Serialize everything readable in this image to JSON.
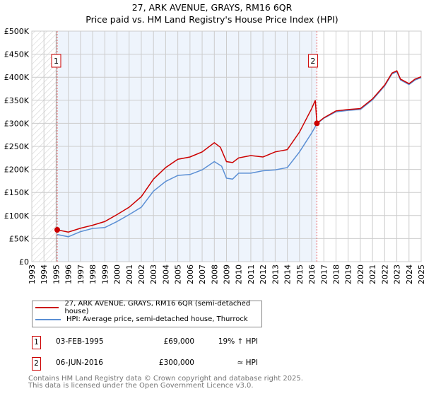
{
  "title": "27, ARK AVENUE, GRAYS, RM16 6QR",
  "subtitle": "Price paid vs. HM Land Registry's House Price Index (HPI)",
  "chart_data": {
    "type": "line",
    "title": "27, ARK AVENUE, GRAYS, RM16 6QR",
    "subtitle": "Price paid vs. HM Land Registry's House Price Index (HPI)",
    "xlim": [
      1993,
      2025
    ],
    "ylim": [
      0,
      500000
    ],
    "xticks": [
      "1993",
      "1994",
      "1995",
      "1996",
      "1997",
      "1998",
      "1999",
      "2000",
      "2001",
      "2002",
      "2003",
      "2004",
      "2005",
      "2006",
      "2007",
      "2008",
      "2009",
      "2010",
      "2011",
      "2012",
      "2013",
      "2014",
      "2015",
      "2016",
      "2017",
      "2018",
      "2019",
      "2020",
      "2021",
      "2022",
      "2023",
      "2024",
      "2025"
    ],
    "yticks": [
      {
        "v": 0,
        "label": "£0"
      },
      {
        "v": 50000,
        "label": "£50K"
      },
      {
        "v": 100000,
        "label": "£100K"
      },
      {
        "v": 150000,
        "label": "£150K"
      },
      {
        "v": 200000,
        "label": "£200K"
      },
      {
        "v": 250000,
        "label": "£250K"
      },
      {
        "v": 300000,
        "label": "£300K"
      },
      {
        "v": 350000,
        "label": "£350K"
      },
      {
        "v": 400000,
        "label": "£400K"
      },
      {
        "v": 450000,
        "label": "£450K"
      },
      {
        "v": 500000,
        "label": "£500K"
      }
    ],
    "grid": true,
    "series": [
      {
        "name": "27, ARK AVENUE, GRAYS, RM16 6QR (semi-detached house)",
        "color": "#cc0000",
        "x": [
          1995.09,
          1996,
          1997,
          1998,
          1999,
          2000,
          2001,
          2002,
          2003,
          2004,
          2005,
          2006,
          2007,
          2008,
          2008.5,
          2009,
          2009.5,
          2010,
          2011,
          2012,
          2013,
          2014,
          2015,
          2016,
          2016.3,
          2016.43,
          2017,
          2018,
          2019,
          2020,
          2021,
          2022,
          2022.6,
          2023,
          2023.3,
          2024,
          2024.5,
          2025
        ],
        "y": [
          69000,
          64000,
          72500,
          79000,
          87000,
          102000,
          118000,
          141000,
          179000,
          204000,
          222000,
          227000,
          238000,
          258000,
          248000,
          217000,
          215000,
          225000,
          230000,
          227000,
          238000,
          243000,
          281000,
          332000,
          350000,
          300000,
          312000,
          327000,
          330000,
          332000,
          353000,
          383000,
          409000,
          414000,
          396000,
          386000,
          396000,
          401000
        ]
      },
      {
        "name": "HPI: Average price, semi-detached house, Thurrock",
        "color": "#5b8fd4",
        "x": [
          1995.09,
          1996,
          1997,
          1998,
          1999,
          2000,
          2001,
          2002,
          2003,
          2004,
          2005,
          2006,
          2007,
          2008,
          2008.6,
          2009,
          2009.5,
          2010,
          2011,
          2012,
          2013,
          2014,
          2015,
          2016,
          2016.43,
          2017,
          2018,
          2019,
          2020,
          2021,
          2022,
          2022.6,
          2023,
          2023.3,
          2024,
          2024.5,
          2025
        ],
        "y": [
          58800,
          54000,
          65000,
          72000,
          74000,
          87000,
          102000,
          118000,
          153000,
          174000,
          187000,
          189000,
          199000,
          217000,
          207000,
          181000,
          179000,
          192000,
          192000,
          197000,
          199000,
          204000,
          238000,
          279000,
          299000,
          311000,
          325000,
          328000,
          330000,
          351000,
          381000,
          407000,
          412000,
          394000,
          384000,
          394000,
          399000
        ]
      }
    ],
    "hatched_range": [
      1993,
      1995
    ],
    "shaded_range": [
      1995.09,
      2016.43
    ],
    "annotations": [
      {
        "label": "1",
        "x": 1995.09,
        "y": 69000
      },
      {
        "label": "2",
        "x": 2016.43,
        "y": 300000
      }
    ]
  },
  "legend": {
    "red": "27, ARK AVENUE, GRAYS, RM16 6QR (semi-detached house)",
    "blue": "HPI: Average price, semi-detached house, Thurrock"
  },
  "transactions": [
    {
      "n": "1",
      "date": "03-FEB-1995",
      "price": "£69,000",
      "hpi": "19% ↑ HPI"
    },
    {
      "n": "2",
      "date": "06-JUN-2016",
      "price": "£300,000",
      "hpi": "≈ HPI"
    }
  ],
  "footer": {
    "line1": "Contains HM Land Registry data © Crown copyright and database right 2025.",
    "line2": "This data is licensed under the Open Government Licence v3.0."
  }
}
